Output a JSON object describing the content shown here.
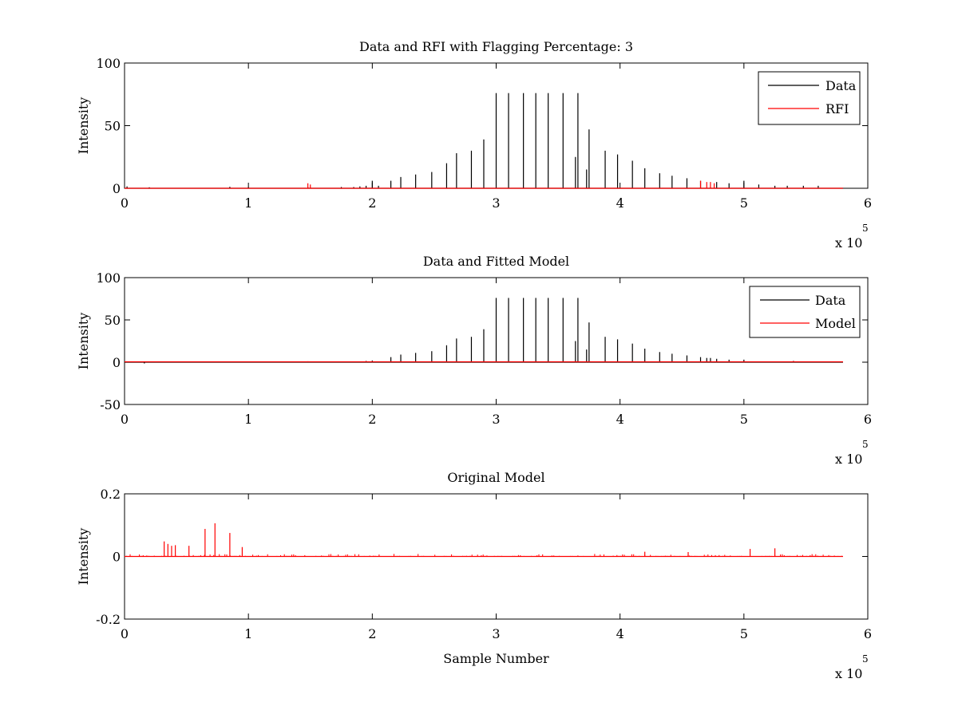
{
  "chart_data": [
    {
      "type": "line",
      "title": "Data and RFI with Flagging Percentage: 3",
      "xlabel": "",
      "ylabel": "Intensity",
      "xlim": [
        0,
        600000
      ],
      "ylim": [
        0,
        100
      ],
      "xticks": [
        0,
        1,
        2,
        3,
        4,
        5,
        6
      ],
      "yticks": [
        0,
        50,
        100
      ],
      "x_multiplier": "x 10",
      "x_multiplier_exp": "5",
      "legend": "top-right",
      "series": [
        {
          "name": "Data",
          "color": "#000000",
          "spikes": [
            [
              2000,
              1.5
            ],
            [
              20000,
              0.8
            ],
            [
              85000,
              1.2
            ],
            [
              100000,
              1.0
            ],
            [
              148000,
              0.8
            ],
            [
              175000,
              1.0
            ],
            [
              185000,
              1.0
            ],
            [
              190000,
              1.5
            ],
            [
              195000,
              2.0
            ],
            [
              200000,
              6.0
            ],
            [
              205000,
              2.0
            ],
            [
              215000,
              6.0
            ],
            [
              223000,
              9.0
            ],
            [
              235000,
              11.0
            ],
            [
              248000,
              13.0
            ],
            [
              260000,
              20.0
            ],
            [
              268000,
              28.0
            ],
            [
              280000,
              30.0
            ],
            [
              290000,
              39.0
            ],
            [
              300000,
              76.0
            ],
            [
              310000,
              76.0
            ],
            [
              322000,
              76.0
            ],
            [
              332000,
              76.0
            ],
            [
              342000,
              76.0
            ],
            [
              354000,
              76.0
            ],
            [
              366000,
              76.0
            ],
            [
              364000,
              25.0
            ],
            [
              373000,
              15.0
            ],
            [
              375000,
              47.0
            ],
            [
              388000,
              30.0
            ],
            [
              398000,
              27.0
            ],
            [
              410000,
              22.0
            ],
            [
              420000,
              16.0
            ],
            [
              432000,
              12.0
            ],
            [
              442000,
              10.0
            ],
            [
              454000,
              8.0
            ],
            [
              465000,
              6.0
            ],
            [
              478000,
              5.0
            ],
            [
              488000,
              4.0
            ],
            [
              500000,
              6.0
            ],
            [
              512000,
              3.0
            ],
            [
              525000,
              2.0
            ],
            [
              535000,
              2.0
            ],
            [
              548000,
              2.0
            ],
            [
              560000,
              2.0
            ]
          ]
        },
        {
          "name": "RFI",
          "color": "#ff0000",
          "spikes": [
            [
              148000,
              4.0
            ],
            [
              150000,
              3.0
            ],
            [
              465000,
              6.0
            ],
            [
              470000,
              5.0
            ],
            [
              473000,
              5.0
            ],
            [
              476000,
              4.0
            ]
          ]
        }
      ]
    },
    {
      "type": "line",
      "title": "Data and Fitted Model",
      "xlabel": "",
      "ylabel": "Intensity",
      "xlim": [
        0,
        600000
      ],
      "ylim": [
        -50,
        100
      ],
      "xticks": [
        0,
        1,
        2,
        3,
        4,
        5,
        6
      ],
      "yticks": [
        -50,
        0,
        50,
        100
      ],
      "x_multiplier": "x 10",
      "x_multiplier_exp": "5",
      "legend": "top-right",
      "series": [
        {
          "name": "Data",
          "color": "#000000",
          "spikes": [
            [
              16000,
              -1.5
            ],
            [
              148000,
              1.0
            ],
            [
              195000,
              1.5
            ],
            [
              200000,
              2.0
            ],
            [
              215000,
              6.0
            ],
            [
              223000,
              9.0
            ],
            [
              235000,
              11.0
            ],
            [
              248000,
              13.0
            ],
            [
              260000,
              20.0
            ],
            [
              268000,
              28.0
            ],
            [
              280000,
              30.0
            ],
            [
              290000,
              39.0
            ],
            [
              300000,
              76.0
            ],
            [
              310000,
              76.0
            ],
            [
              322000,
              76.0
            ],
            [
              332000,
              76.0
            ],
            [
              342000,
              76.0
            ],
            [
              354000,
              76.0
            ],
            [
              366000,
              76.0
            ],
            [
              364000,
              25.0
            ],
            [
              373000,
              15.0
            ],
            [
              375000,
              47.0
            ],
            [
              388000,
              30.0
            ],
            [
              398000,
              27.0
            ],
            [
              410000,
              22.0
            ],
            [
              420000,
              16.0
            ],
            [
              432000,
              12.0
            ],
            [
              442000,
              10.0
            ],
            [
              454000,
              8.0
            ],
            [
              465000,
              6.0
            ],
            [
              470000,
              5.0
            ],
            [
              473000,
              5.0
            ],
            [
              478000,
              4.0
            ],
            [
              488000,
              3.0
            ],
            [
              500000,
              3.0
            ],
            [
              540000,
              1.5
            ]
          ]
        },
        {
          "name": "Model",
          "color": "#ff0000",
          "baseline": 0.5,
          "xmax": 580000
        }
      ]
    },
    {
      "type": "line",
      "title": "Original Model",
      "xlabel": "Sample Number",
      "ylabel": "Intensity",
      "xlim": [
        0,
        600000
      ],
      "ylim": [
        -0.2,
        0.2
      ],
      "xticks": [
        0,
        1,
        2,
        3,
        4,
        5,
        6
      ],
      "yticks": [
        -0.2,
        0,
        0.2
      ],
      "x_multiplier": "x 10",
      "x_multiplier_exp": "5",
      "series": [
        {
          "name": "",
          "color": "#ff0000",
          "xmax": 580000,
          "noise_amplitude": 0.008,
          "spikes": [
            [
              32000,
              0.048
            ],
            [
              35000,
              0.04
            ],
            [
              38000,
              0.034
            ],
            [
              41000,
              0.036
            ],
            [
              52000,
              0.034
            ],
            [
              65000,
              0.088
            ],
            [
              73000,
              0.106
            ],
            [
              85000,
              0.075
            ],
            [
              95000,
              0.03
            ],
            [
              420000,
              0.015
            ],
            [
              455000,
              0.014
            ],
            [
              505000,
              0.024
            ],
            [
              525000,
              0.026
            ]
          ]
        }
      ]
    }
  ]
}
